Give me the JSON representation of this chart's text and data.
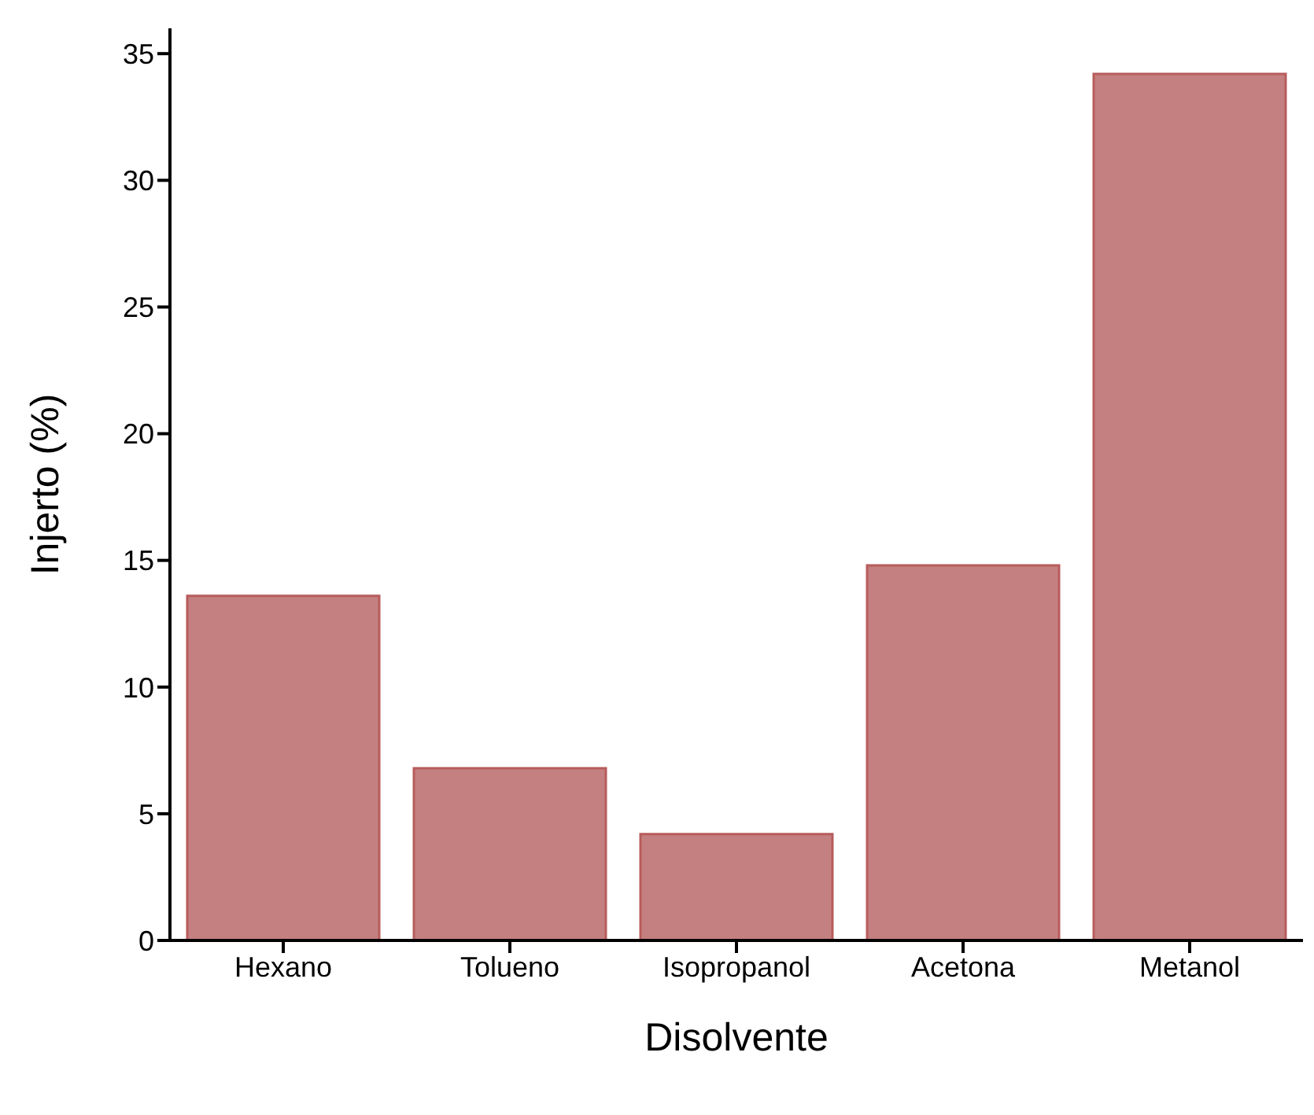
{
  "chart_data": {
    "type": "bar",
    "xlabel": "Disolvente",
    "ylabel": "Injerto (%)",
    "categories": [
      "Hexano",
      "Tolueno",
      "Isopropanol",
      "Acetona",
      "Metanol"
    ],
    "values": [
      13.6,
      6.8,
      4.2,
      14.8,
      34.2
    ],
    "color": "#c48080",
    "ylim": [
      0,
      36
    ],
    "yticks": [
      0,
      5,
      10,
      15,
      20,
      25,
      30,
      35
    ],
    "grid": false,
    "legend": false
  }
}
